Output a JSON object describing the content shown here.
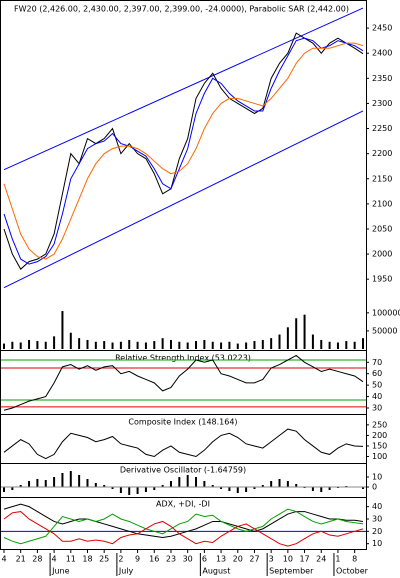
{
  "chart_data": [
    {
      "type": "line",
      "title": "FW20 (2,426.00, 2,430.00, 2,397.00, 2,399.00, -24.0000), Parabolic SAR (2,442.00)",
      "categories": [
        "4",
        null,
        "21",
        null,
        "28",
        null,
        "4",
        null,
        "11",
        null,
        "18",
        null,
        "25",
        null,
        "2",
        null,
        "9",
        null,
        "16",
        null,
        "23",
        null,
        "30",
        null,
        "6",
        null,
        "13",
        null,
        "20",
        null,
        "27",
        null,
        "3",
        null,
        "10",
        null,
        "17",
        null,
        "24",
        null,
        "1",
        null,
        "8",
        null
      ],
      "month_labels": [
        "June",
        "July",
        "August",
        "September",
        "October"
      ],
      "ylim": [
        1811,
        2500
      ],
      "yticks": [
        1950,
        2000,
        2050,
        2100,
        2150,
        2200,
        2250,
        2300,
        2350,
        2400,
        2450
      ],
      "trendlines": [
        {
          "color": "#0000ff",
          "start": 2168,
          "end": 2490
        },
        {
          "color": "#0000ff",
          "start": 1933,
          "end": 2285
        }
      ],
      "series": [
        {
          "color": "#000000",
          "values": [
            2050,
            2000,
            1970,
            1985,
            1990,
            2000,
            2040,
            2120,
            2200,
            2180,
            2230,
            2220,
            2230,
            2250,
            2200,
            2220,
            2200,
            2190,
            2160,
            2120,
            2130,
            2190,
            2230,
            2310,
            2340,
            2360,
            2330,
            2310,
            2300,
            2290,
            2280,
            2290,
            2350,
            2380,
            2400,
            2440,
            2430,
            2420,
            2400,
            2420,
            2430,
            2420,
            2410,
            2399
          ]
        },
        {
          "color": "#0000ff",
          "values": [
            2080,
            2030,
            1990,
            1980,
            1985,
            1995,
            2020,
            2080,
            2150,
            2180,
            2210,
            2220,
            2225,
            2240,
            2220,
            2215,
            2205,
            2195,
            2170,
            2140,
            2130,
            2170,
            2210,
            2280,
            2320,
            2350,
            2340,
            2320,
            2305,
            2295,
            2285,
            2285,
            2330,
            2365,
            2395,
            2425,
            2430,
            2425,
            2410,
            2415,
            2425,
            2420,
            2415,
            2405
          ]
        },
        {
          "color": "#ff6600",
          "values": [
            2140,
            2090,
            2040,
            2010,
            1995,
            1990,
            2000,
            2030,
            2070,
            2110,
            2150,
            2180,
            2200,
            2210,
            2215,
            2215,
            2210,
            2200,
            2185,
            2170,
            2160,
            2165,
            2180,
            2210,
            2250,
            2280,
            2300,
            2310,
            2310,
            2305,
            2300,
            2295,
            2310,
            2330,
            2350,
            2380,
            2400,
            2410,
            2410,
            2410,
            2415,
            2420,
            2420,
            2415
          ]
        }
      ]
    },
    {
      "type": "bar",
      "ylim": [
        0,
        130000
      ],
      "yticks": [
        50000,
        100000
      ],
      "color": "#000000",
      "values": [
        15000,
        20000,
        18000,
        25000,
        22000,
        20000,
        35000,
        105000,
        45000,
        30000,
        25000,
        20000,
        22000,
        18000,
        20000,
        25000,
        20000,
        18000,
        22000,
        30000,
        25000,
        20000,
        18000,
        22000,
        25000,
        20000,
        18000,
        20000,
        15000,
        18000,
        22000,
        25000,
        30000,
        40000,
        60000,
        85000,
        95000,
        40000,
        25000,
        20000,
        18000,
        22000,
        20000,
        30000
      ]
    },
    {
      "type": "line",
      "title": "Relative Strength Index (53.0223)",
      "ylim": [
        26.5,
        79
      ],
      "yticks": [
        30,
        40,
        50,
        60,
        70
      ],
      "levels": [
        {
          "value": 72,
          "color": "#00a000"
        },
        {
          "value": 65,
          "color": "#e00000"
        },
        {
          "value": 37,
          "color": "#00a000"
        },
        {
          "value": 31,
          "color": "#e00000"
        }
      ],
      "series": [
        {
          "color": "#000000",
          "values": [
            28,
            30,
            33,
            36,
            38,
            40,
            52,
            66,
            68,
            64,
            67,
            63,
            66,
            67,
            60,
            62,
            58,
            55,
            52,
            45,
            48,
            58,
            64,
            72,
            70,
            72,
            60,
            58,
            55,
            52,
            52,
            55,
            65,
            68,
            72,
            76,
            70,
            66,
            62,
            64,
            62,
            60,
            58,
            53
          ]
        }
      ]
    },
    {
      "type": "line",
      "title": "Composite Index (148.164)",
      "ylim": [
        74,
        292
      ],
      "yticks": [
        100,
        150,
        200,
        250
      ],
      "series": [
        {
          "color": "#000000",
          "values": [
            120,
            150,
            180,
            160,
            110,
            90,
            110,
            170,
            210,
            200,
            190,
            170,
            180,
            195,
            160,
            150,
            140,
            110,
            100,
            130,
            150,
            120,
            110,
            100,
            130,
            170,
            200,
            210,
            190,
            160,
            150,
            140,
            170,
            200,
            230,
            220,
            180,
            150,
            120,
            110,
            140,
            160,
            150,
            148
          ]
        }
      ]
    },
    {
      "type": "bar",
      "title": "Derivative Oscillator (-1.64759)",
      "ylim": [
        -9,
        23
      ],
      "yticks": [
        0,
        10
      ],
      "color": "#000000",
      "values": [
        -5,
        -3,
        2,
        6,
        8,
        7,
        10,
        14,
        16,
        12,
        8,
        4,
        2,
        -2,
        -6,
        -8,
        -7,
        -5,
        -3,
        2,
        6,
        10,
        12,
        10,
        6,
        2,
        -2,
        -4,
        -6,
        -5,
        -2,
        2,
        6,
        8,
        6,
        3,
        -1,
        -4,
        -5,
        -3,
        -1,
        1,
        0,
        -2
      ]
    },
    {
      "type": "line",
      "title": "ADX, +DI, -DI",
      "ylim": [
        6.5,
        47
      ],
      "yticks": [
        10,
        20,
        30,
        40
      ],
      "levels": [
        {
          "value": 20,
          "color": "#0000ff"
        }
      ],
      "series": [
        {
          "color": "#000000",
          "values": [
            38,
            40,
            42,
            40,
            36,
            32,
            28,
            26,
            28,
            30,
            30,
            28,
            26,
            24,
            22,
            20,
            18,
            17,
            16,
            15,
            16,
            18,
            20,
            22,
            25,
            28,
            28,
            26,
            24,
            22,
            20,
            22,
            26,
            30,
            34,
            36,
            36,
            34,
            32,
            30,
            30,
            29,
            29,
            28
          ]
        },
        {
          "color": "#00a000",
          "values": [
            15,
            12,
            10,
            12,
            14,
            16,
            24,
            32,
            30,
            28,
            30,
            28,
            30,
            34,
            30,
            28,
            25,
            22,
            20,
            18,
            22,
            26,
            28,
            34,
            32,
            33,
            28,
            25,
            22,
            20,
            22,
            24,
            30,
            34,
            38,
            36,
            32,
            28,
            26,
            28,
            30,
            28,
            27,
            26
          ]
        },
        {
          "color": "#e00000",
          "values": [
            30,
            35,
            36,
            30,
            26,
            22,
            18,
            12,
            12,
            14,
            12,
            13,
            12,
            10,
            15,
            17,
            18,
            22,
            26,
            28,
            24,
            18,
            14,
            10,
            12,
            11,
            16,
            20,
            24,
            26,
            22,
            18,
            14,
            10,
            8,
            10,
            14,
            18,
            20,
            17,
            16,
            18,
            20,
            22
          ]
        }
      ]
    }
  ]
}
